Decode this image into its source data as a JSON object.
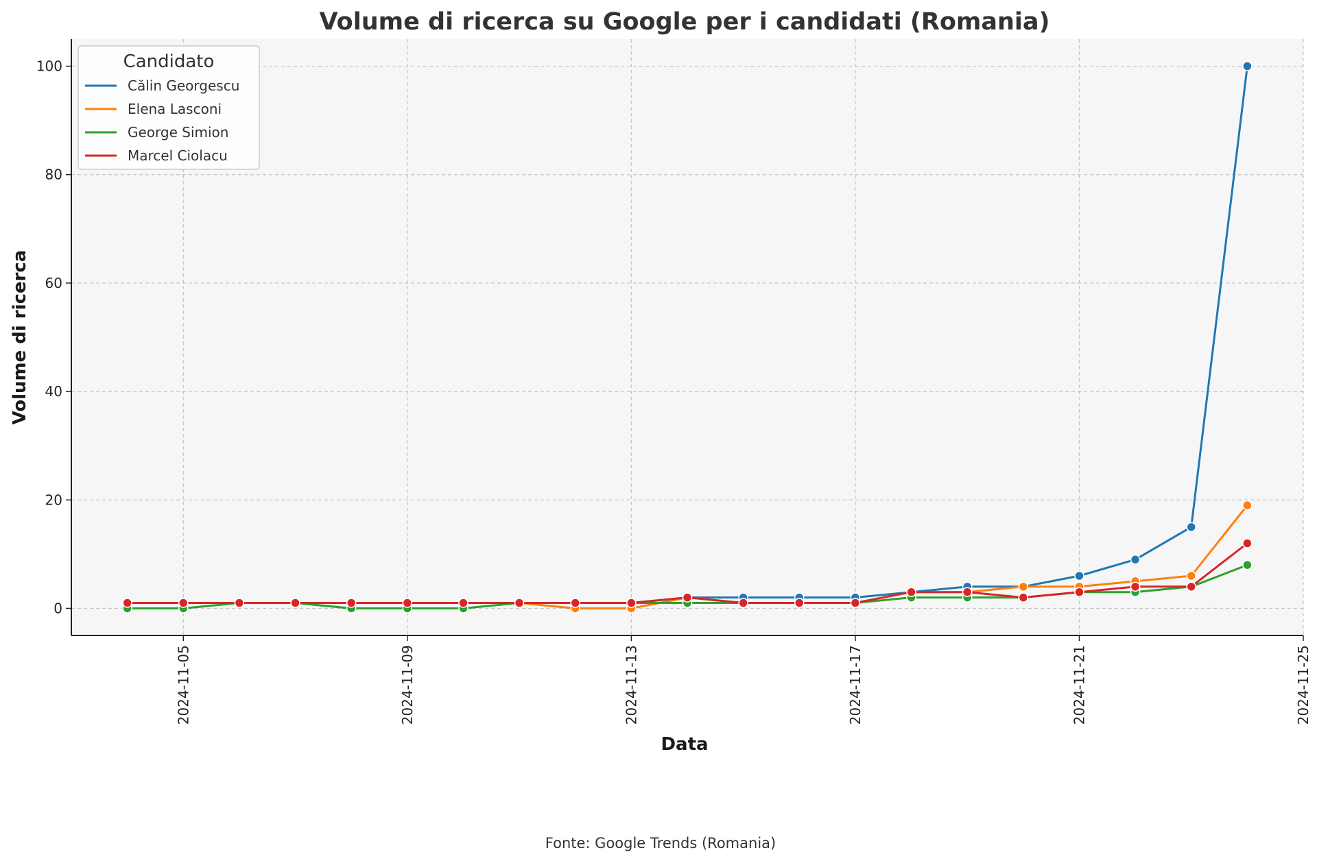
{
  "chart_data": {
    "type": "line",
    "title": "Volume di ricerca su Google per i candidati (Romania)",
    "xlabel": "Data",
    "ylabel": "Volume di ricerca",
    "x": [
      "2024-11-04",
      "2024-11-05",
      "2024-11-06",
      "2024-11-07",
      "2024-11-08",
      "2024-11-09",
      "2024-11-10",
      "2024-11-11",
      "2024-11-12",
      "2024-11-13",
      "2024-11-14",
      "2024-11-15",
      "2024-11-16",
      "2024-11-17",
      "2024-11-18",
      "2024-11-19",
      "2024-11-20",
      "2024-11-21",
      "2024-11-22",
      "2024-11-23",
      "2024-11-24"
    ],
    "x_ticks": [
      "2024-11-05",
      "2024-11-09",
      "2024-11-13",
      "2024-11-17",
      "2024-11-21",
      "2024-11-25"
    ],
    "y_ticks": [
      0,
      20,
      40,
      60,
      80,
      100
    ],
    "ylim": [
      -5,
      105
    ],
    "xlim": [
      "2024-11-03",
      "2024-11-25"
    ],
    "grid": true,
    "legend_title": "Candidato",
    "legend_placement": "top-left",
    "source": "Fonte: Google Trends (Romania)",
    "series": [
      {
        "name": "Călin Georgescu",
        "color": "#1f77b4",
        "values": [
          1,
          1,
          1,
          1,
          1,
          1,
          1,
          1,
          1,
          1,
          2,
          2,
          2,
          2,
          3,
          4,
          4,
          6,
          9,
          15,
          100
        ]
      },
      {
        "name": "Elena Lasconi",
        "color": "#ff7f0e",
        "values": [
          1,
          1,
          1,
          1,
          1,
          1,
          1,
          1,
          0,
          0,
          2,
          1,
          1,
          1,
          3,
          3,
          4,
          4,
          5,
          6,
          19
        ]
      },
      {
        "name": "George Simion",
        "color": "#2ca02c",
        "values": [
          0,
          0,
          1,
          1,
          0,
          0,
          0,
          1,
          1,
          1,
          1,
          1,
          1,
          1,
          2,
          2,
          2,
          3,
          3,
          4,
          8
        ]
      },
      {
        "name": "Marcel Ciolacu",
        "color": "#d62728",
        "values": [
          1,
          1,
          1,
          1,
          1,
          1,
          1,
          1,
          1,
          1,
          2,
          1,
          1,
          1,
          3,
          3,
          2,
          3,
          4,
          4,
          12
        ]
      }
    ]
  }
}
